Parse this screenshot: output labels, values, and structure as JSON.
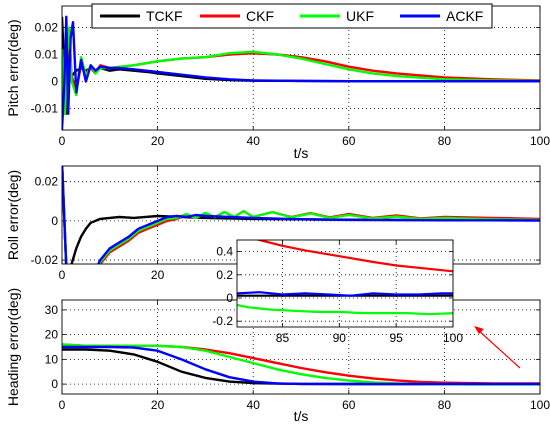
{
  "legend": {
    "placement": "top-center",
    "items": [
      {
        "name": "TCKF",
        "color": "#000000"
      },
      {
        "name": "CKF",
        "color": "#ff0000"
      },
      {
        "name": "UKF",
        "color": "#00ff00"
      },
      {
        "name": "ACKF",
        "color": "#0000ff"
      }
    ]
  },
  "chart_data": [
    {
      "type": "line",
      "ylabel": "Pitch error(deg)",
      "xlabel": "t/s",
      "xlim": [
        0,
        100
      ],
      "ylim": [
        -0.018,
        0.028
      ],
      "xticks": [
        "0",
        "20",
        "40",
        "60",
        "80",
        "100"
      ],
      "yticks": [
        "-0.01",
        "0",
        "0.01",
        "0.02"
      ],
      "grid": true,
      "series": [
        {
          "name": "TCKF",
          "x": [
            0,
            0.5,
            0.8,
            1.2,
            2,
            3,
            4,
            5,
            6,
            7,
            8,
            10,
            12,
            15,
            18,
            20,
            25,
            30,
            35,
            40,
            50,
            60,
            70,
            80,
            90,
            100
          ],
          "y": [
            0.024,
            0.003,
            -0.012,
            0.012,
            0.002,
            0.004,
            0.005,
            0.004,
            0.005,
            0.004,
            0.005,
            0.004,
            0.0045,
            0.004,
            0.0035,
            0.003,
            0.002,
            0.001,
            0.0005,
            0.0003,
            0.0002,
            0.0001,
            0.0001,
            0.0001,
            0.0001,
            0.0001
          ]
        },
        {
          "name": "CKF",
          "x": [
            0,
            0.6,
            1,
            1.5,
            2,
            3,
            4,
            5,
            6,
            7,
            8,
            10,
            15,
            20,
            25,
            30,
            35,
            40,
            45,
            50,
            55,
            60,
            65,
            70,
            80,
            90,
            100
          ],
          "y": [
            0.012,
            -0.012,
            0.006,
            0.018,
            0.002,
            -0.003,
            0.006,
            0.003,
            0.005,
            0.003,
            0.006,
            0.005,
            0.006,
            0.0075,
            0.0085,
            0.009,
            0.01,
            0.0105,
            0.01,
            0.009,
            0.0075,
            0.0055,
            0.004,
            0.003,
            0.0015,
            0.0008,
            0.0004
          ]
        },
        {
          "name": "UKF",
          "x": [
            0,
            0.6,
            1,
            1.5,
            2,
            3,
            4,
            5,
            6,
            7,
            8,
            10,
            15,
            20,
            25,
            30,
            35,
            40,
            45,
            50,
            55,
            60,
            65,
            70,
            80,
            90,
            100
          ],
          "y": [
            0.012,
            -0.012,
            0.008,
            0.02,
            0.0,
            -0.005,
            0.009,
            0.002,
            0.006,
            0.003,
            0.005,
            0.005,
            0.006,
            0.0075,
            0.0085,
            0.009,
            0.0105,
            0.011,
            0.01,
            0.0085,
            0.0065,
            0.0045,
            0.003,
            0.002,
            0.0008,
            0.0004,
            0.0002
          ]
        },
        {
          "name": "ACKF",
          "x": [
            0,
            0.5,
            0.9,
            1.3,
            1.8,
            2.3,
            3,
            4,
            5,
            6,
            7,
            8,
            10,
            12,
            15,
            20,
            25,
            30,
            35,
            40,
            50,
            60,
            70,
            80,
            90,
            100
          ],
          "y": [
            -0.018,
            0.0,
            0.024,
            -0.012,
            0.016,
            0.022,
            -0.004,
            0.008,
            0.0,
            0.006,
            0.004,
            0.0055,
            0.005,
            0.005,
            0.0045,
            0.0035,
            0.0025,
            0.0015,
            0.0008,
            0.0004,
            0.0002,
            0.0001,
            0.0001,
            0.0001,
            0.0001,
            0.0001
          ]
        }
      ]
    },
    {
      "type": "line",
      "ylabel": "Roll error(deg)",
      "xlabel": "",
      "xlim": [
        0,
        100
      ],
      "ylim": [
        -0.022,
        0.028
      ],
      "xticks": [
        "0",
        "20"
      ],
      "yticks": [
        "-0.02",
        "0",
        "0.02"
      ],
      "grid": true,
      "series": [
        {
          "name": "TCKF",
          "x": [
            0,
            1,
            2,
            3,
            4,
            5,
            6,
            8,
            10,
            12,
            15,
            20,
            25,
            30,
            40,
            50,
            60,
            70,
            80,
            90,
            100
          ],
          "y": [
            0.03,
            -0.03,
            -0.022,
            -0.014,
            -0.008,
            -0.004,
            -0.001,
            0.001,
            0.0015,
            0.002,
            0.0015,
            0.0025,
            0.002,
            0.0015,
            0.001,
            0.0008,
            0.0006,
            0.0005,
            0.0004,
            0.0003,
            0.0003
          ]
        },
        {
          "name": "CKF",
          "x": [
            0,
            1,
            3,
            6,
            8,
            10,
            12,
            14,
            16,
            18,
            20,
            22,
            24,
            26,
            28,
            30,
            32,
            34,
            36,
            38,
            40,
            44,
            48,
            52,
            56,
            60,
            65,
            70,
            75,
            80,
            90,
            100
          ],
          "y": [
            0.03,
            -0.03,
            -0.03,
            -0.03,
            -0.022,
            -0.016,
            -0.013,
            -0.01,
            -0.006,
            -0.004,
            -0.002,
            0.0,
            0.001,
            0.003,
            0.0015,
            0.0035,
            0.002,
            0.0045,
            0.002,
            0.005,
            0.002,
            0.0045,
            0.002,
            0.004,
            0.0018,
            0.0035,
            0.0015,
            0.0028,
            0.0012,
            0.002,
            0.0015,
            0.001
          ]
        },
        {
          "name": "UKF",
          "x": [
            0,
            1,
            3,
            6,
            8,
            10,
            12,
            14,
            16,
            18,
            20,
            22,
            24,
            26,
            28,
            30,
            32,
            34,
            36,
            38,
            40,
            44,
            48,
            52,
            56,
            60,
            65,
            70,
            75,
            80,
            90,
            100
          ],
          "y": [
            0.03,
            -0.03,
            -0.03,
            -0.03,
            -0.021,
            -0.015,
            -0.012,
            -0.009,
            -0.005,
            -0.003,
            -0.001,
            0.001,
            0.0015,
            0.0035,
            0.0015,
            0.004,
            0.002,
            0.0045,
            0.002,
            0.005,
            0.002,
            0.0045,
            0.0018,
            0.0038,
            0.0015,
            0.003,
            0.0012,
            0.0022,
            0.0009,
            0.0015,
            0.0008,
            0.0005
          ]
        },
        {
          "name": "ACKF",
          "x": [
            0,
            1,
            3,
            6,
            8,
            10,
            12,
            14,
            16,
            18,
            20,
            22,
            24,
            26,
            28,
            30,
            35,
            40,
            50,
            60,
            70,
            80,
            90,
            100
          ],
          "y": [
            0.03,
            -0.03,
            -0.03,
            -0.03,
            -0.02,
            -0.014,
            -0.011,
            -0.008,
            -0.004,
            -0.002,
            0.0,
            0.002,
            0.0025,
            0.002,
            0.003,
            0.0025,
            0.002,
            0.0015,
            0.0008,
            0.0005,
            0.0004,
            0.0003,
            0.0003,
            0.0002
          ]
        }
      ]
    },
    {
      "type": "line",
      "ylabel": "Heading error(deg)",
      "xlabel": "t/s",
      "xlim": [
        0,
        100
      ],
      "ylim": [
        -4,
        34
      ],
      "xticks": [
        "0",
        "20",
        "40",
        "60",
        "80",
        "100"
      ],
      "yticks": [
        "0",
        "10",
        "20",
        "30"
      ],
      "grid": true,
      "series": [
        {
          "name": "TCKF",
          "x": [
            0,
            5,
            10,
            15,
            20,
            25,
            30,
            35,
            40,
            45,
            50,
            60,
            70,
            80,
            90,
            100
          ],
          "y": [
            14,
            14,
            13.5,
            12,
            9,
            5,
            2.5,
            1,
            0.4,
            0.2,
            0.1,
            0.05,
            0.03,
            0.02,
            0.02,
            0.02
          ]
        },
        {
          "name": "CKF",
          "x": [
            0,
            5,
            10,
            15,
            20,
            25,
            30,
            35,
            40,
            45,
            50,
            55,
            60,
            65,
            70,
            75,
            80,
            85,
            90,
            95,
            100
          ],
          "y": [
            16,
            15.5,
            15.5,
            15.5,
            15.5,
            15,
            14,
            12.5,
            10.5,
            8.5,
            6.5,
            4.8,
            3.4,
            2.3,
            1.5,
            0.9,
            0.55,
            0.4,
            0.3,
            0.25,
            0.23
          ]
        },
        {
          "name": "UKF",
          "x": [
            0,
            5,
            10,
            15,
            20,
            25,
            30,
            35,
            40,
            45,
            50,
            55,
            60,
            65,
            70,
            75,
            80,
            85,
            90,
            95,
            100
          ],
          "y": [
            16,
            15.5,
            15.5,
            15.5,
            15.5,
            15,
            13.5,
            11,
            8.5,
            6,
            4,
            2.5,
            1.4,
            0.7,
            0.3,
            0.1,
            -0.05,
            -0.1,
            -0.12,
            -0.13,
            -0.13
          ]
        },
        {
          "name": "ACKF",
          "x": [
            0,
            5,
            10,
            15,
            20,
            25,
            30,
            35,
            40,
            45,
            50,
            60,
            70,
            80,
            90,
            100
          ],
          "y": [
            15,
            15,
            15,
            14.8,
            13.5,
            10,
            6,
            2.8,
            1,
            0.3,
            0.1,
            0.05,
            0.04,
            0.04,
            0.04,
            0.04
          ]
        }
      ]
    },
    {
      "type": "line",
      "role": "inset",
      "xlabel": "",
      "xlim": [
        81,
        100
      ],
      "ylim": [
        -0.25,
        0.5
      ],
      "xticks": [
        "85",
        "90",
        "95",
        "100"
      ],
      "yticks": [
        "-0.2",
        "0",
        "0.2",
        "0.4"
      ],
      "grid": true,
      "series": [
        {
          "name": "TCKF",
          "x": [
            81,
            85,
            90,
            95,
            100
          ],
          "y": [
            0.02,
            0.02,
            0.02,
            0.02,
            0.02
          ]
        },
        {
          "name": "CKF",
          "x": [
            81,
            83,
            85,
            87,
            90,
            93,
            95,
            97,
            100
          ],
          "y": [
            0.55,
            0.5,
            0.45,
            0.41,
            0.36,
            0.31,
            0.28,
            0.26,
            0.23
          ]
        },
        {
          "name": "UKF",
          "x": [
            81,
            82,
            84,
            86,
            88,
            90,
            92,
            94,
            96,
            98,
            100
          ],
          "y": [
            -0.06,
            -0.08,
            -0.1,
            -0.11,
            -0.12,
            -0.12,
            -0.13,
            -0.13,
            -0.13,
            -0.14,
            -0.13
          ]
        },
        {
          "name": "ACKF",
          "x": [
            81,
            83,
            85,
            87,
            89,
            91,
            93,
            95,
            97,
            99,
            100
          ],
          "y": [
            0.04,
            0.05,
            0.03,
            0.04,
            0.03,
            0.02,
            0.04,
            0.03,
            0.03,
            0.04,
            0.04
          ]
        }
      ]
    }
  ]
}
